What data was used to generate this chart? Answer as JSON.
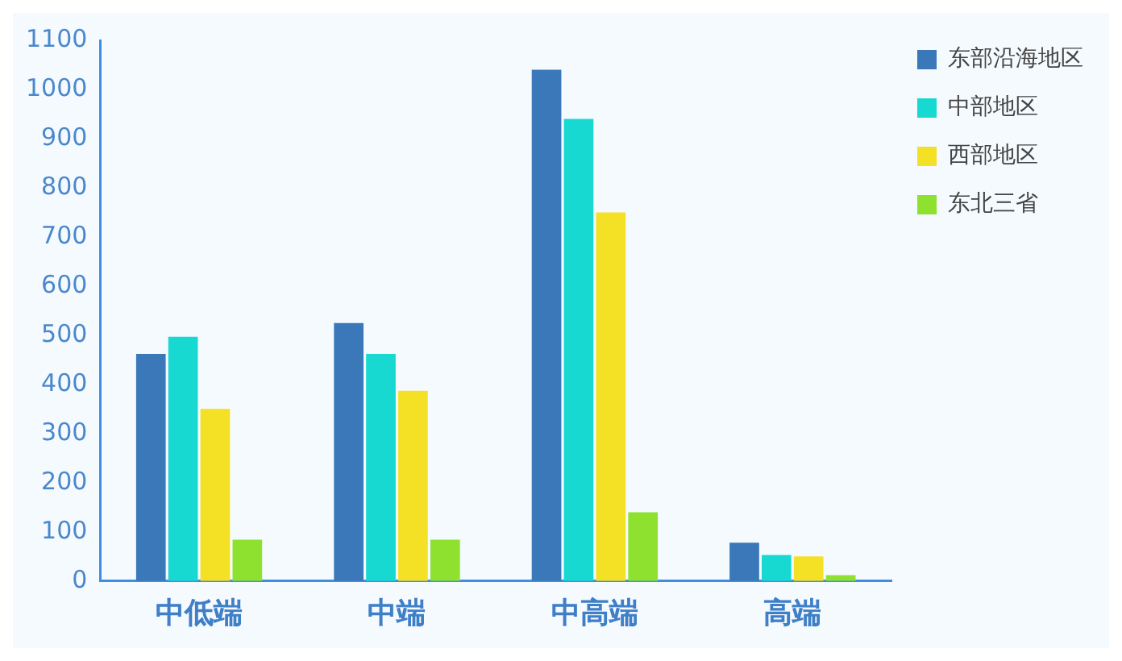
{
  "chart_data": {
    "type": "bar",
    "categories": [
      "中低端",
      "中端",
      "中高端",
      "高端"
    ],
    "series": [
      {
        "name": "东部沿海地区",
        "color": "#3a78b9",
        "values": [
          462,
          525,
          1040,
          78
        ]
      },
      {
        "name": "中部地区",
        "color": "#17d9d2",
        "values": [
          497,
          462,
          940,
          53
        ]
      },
      {
        "name": "西部地区",
        "color": "#f4e024",
        "values": [
          350,
          387,
          750,
          50
        ]
      },
      {
        "name": "东北三省",
        "color": "#8ee22f",
        "values": [
          84,
          84,
          140,
          12
        ]
      }
    ],
    "ylim": [
      0,
      1100
    ],
    "yticks": [
      0,
      100,
      200,
      300,
      400,
      500,
      600,
      700,
      800,
      900,
      1000,
      1100
    ],
    "grid": false,
    "legend": "top right"
  }
}
